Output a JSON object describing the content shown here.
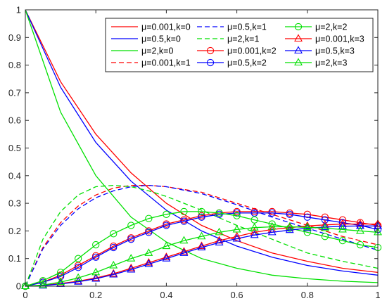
{
  "chart_data": {
    "type": "line",
    "xlim": [
      0,
      1
    ],
    "ylim": [
      0,
      1
    ],
    "x_ticks": [
      0,
      0.2,
      0.4,
      0.6,
      0.8,
      1
    ],
    "x_tick_labels": [
      "0",
      "0.2",
      "0.4",
      "0.6",
      "0.8",
      "1"
    ],
    "y_ticks": [
      0,
      0.1,
      0.2,
      0.3,
      0.4,
      0.5,
      0.6,
      0.7,
      0.8,
      0.9,
      1
    ],
    "y_tick_labels": [
      "0",
      "0.1",
      "0.2",
      "0.3",
      "0.4",
      "0.5",
      "0.6",
      "0.7",
      "0.8",
      "0.9",
      "1"
    ],
    "grid": false,
    "legend_position": "top-right",
    "legend_columns": 3,
    "colors": {
      "mu_0.001": "#ff0000",
      "mu_0.5": "#0000ff",
      "mu_2": "#00e000"
    },
    "series": [
      {
        "name": "μ=0.001,k=0",
        "color": "#ff0000",
        "style": "solid",
        "marker": "none",
        "x": [
          0,
          0.1,
          0.2,
          0.3,
          0.4,
          0.5,
          0.6,
          0.7,
          0.8,
          0.9,
          1.0
        ],
        "y": [
          1,
          0.74,
          0.55,
          0.41,
          0.3,
          0.22,
          0.165,
          0.12,
          0.09,
          0.065,
          0.05
        ]
      },
      {
        "name": "μ=0.5,k=0",
        "color": "#0000ff",
        "style": "solid",
        "marker": "none",
        "x": [
          0,
          0.1,
          0.2,
          0.3,
          0.4,
          0.5,
          0.6,
          0.7,
          0.8,
          0.9,
          1.0
        ],
        "y": [
          1,
          0.72,
          0.52,
          0.38,
          0.275,
          0.2,
          0.145,
          0.105,
          0.075,
          0.055,
          0.04
        ]
      },
      {
        "name": "μ=2,k=0",
        "color": "#00e000",
        "style": "solid",
        "marker": "none",
        "x": [
          0,
          0.1,
          0.2,
          0.3,
          0.4,
          0.5,
          0.6,
          0.7,
          0.8,
          0.9,
          1.0
        ],
        "y": [
          1,
          0.63,
          0.4,
          0.25,
          0.16,
          0.1,
          0.065,
          0.04,
          0.027,
          0.018,
          0.013
        ]
      },
      {
        "name": "μ=0.001,k=1",
        "color": "#ff0000",
        "style": "dashed",
        "marker": "none",
        "x": [
          0,
          0.05,
          0.1,
          0.15,
          0.2,
          0.25,
          0.3,
          0.35,
          0.4,
          0.5,
          0.6,
          0.7,
          0.8,
          0.9,
          1.0
        ],
        "y": [
          0,
          0.14,
          0.23,
          0.29,
          0.33,
          0.355,
          0.365,
          0.365,
          0.36,
          0.34,
          0.3,
          0.26,
          0.22,
          0.18,
          0.15
        ]
      },
      {
        "name": "μ=0.5,k=1",
        "color": "#0000ff",
        "style": "dashed",
        "marker": "none",
        "x": [
          0,
          0.05,
          0.1,
          0.15,
          0.2,
          0.25,
          0.3,
          0.35,
          0.4,
          0.5,
          0.6,
          0.7,
          0.8,
          0.9,
          1.0
        ],
        "y": [
          0,
          0.135,
          0.22,
          0.28,
          0.32,
          0.345,
          0.36,
          0.365,
          0.36,
          0.335,
          0.295,
          0.25,
          0.21,
          0.17,
          0.13
        ]
      },
      {
        "name": "μ=2,k=1",
        "color": "#00e000",
        "style": "dashed",
        "marker": "none",
        "x": [
          0,
          0.05,
          0.1,
          0.15,
          0.2,
          0.25,
          0.3,
          0.35,
          0.4,
          0.5,
          0.6,
          0.7,
          0.8,
          0.9,
          1.0
        ],
        "y": [
          0,
          0.17,
          0.27,
          0.33,
          0.36,
          0.365,
          0.36,
          0.345,
          0.325,
          0.275,
          0.22,
          0.17,
          0.12,
          0.09,
          0.065
        ]
      },
      {
        "name": "μ=0.001,k=2",
        "color": "#ff0000",
        "style": "solid",
        "marker": "circle",
        "x": [
          0,
          0.05,
          0.1,
          0.15,
          0.2,
          0.25,
          0.3,
          0.35,
          0.4,
          0.45,
          0.5,
          0.55,
          0.6,
          0.65,
          0.7,
          0.75,
          0.8,
          0.85,
          0.9,
          0.95,
          1.0
        ],
        "y": [
          0,
          0.015,
          0.04,
          0.075,
          0.11,
          0.145,
          0.175,
          0.2,
          0.225,
          0.24,
          0.255,
          0.265,
          0.27,
          0.27,
          0.27,
          0.265,
          0.26,
          0.25,
          0.24,
          0.23,
          0.22
        ]
      },
      {
        "name": "μ=0.5,k=2",
        "color": "#0000ff",
        "style": "solid",
        "marker": "circle",
        "x": [
          0,
          0.05,
          0.1,
          0.15,
          0.2,
          0.25,
          0.3,
          0.35,
          0.4,
          0.45,
          0.5,
          0.55,
          0.6,
          0.65,
          0.7,
          0.75,
          0.8,
          0.85,
          0.9,
          0.95,
          1.0
        ],
        "y": [
          0,
          0.014,
          0.035,
          0.068,
          0.105,
          0.14,
          0.17,
          0.195,
          0.22,
          0.235,
          0.25,
          0.26,
          0.265,
          0.265,
          0.265,
          0.26,
          0.25,
          0.24,
          0.23,
          0.22,
          0.205
        ]
      },
      {
        "name": "μ=2,k=2",
        "color": "#00e000",
        "style": "solid",
        "marker": "circle",
        "x": [
          0,
          0.05,
          0.1,
          0.15,
          0.2,
          0.25,
          0.3,
          0.35,
          0.4,
          0.45,
          0.5,
          0.55,
          0.6,
          0.65,
          0.7,
          0.75,
          0.8,
          0.85,
          0.9,
          0.95,
          1.0
        ],
        "y": [
          0,
          0.02,
          0.05,
          0.1,
          0.15,
          0.19,
          0.22,
          0.245,
          0.26,
          0.27,
          0.27,
          0.265,
          0.255,
          0.24,
          0.225,
          0.21,
          0.195,
          0.18,
          0.165,
          0.15,
          0.14
        ]
      },
      {
        "name": "μ=0.001,k=3",
        "color": "#ff0000",
        "style": "solid",
        "marker": "triangle",
        "x": [
          0,
          0.05,
          0.1,
          0.15,
          0.2,
          0.25,
          0.3,
          0.35,
          0.4,
          0.45,
          0.5,
          0.55,
          0.6,
          0.65,
          0.7,
          0.75,
          0.8,
          0.85,
          0.9,
          0.95,
          1.0
        ],
        "y": [
          0,
          0.003,
          0.01,
          0.018,
          0.03,
          0.045,
          0.065,
          0.085,
          0.105,
          0.125,
          0.145,
          0.165,
          0.18,
          0.195,
          0.205,
          0.212,
          0.218,
          0.222,
          0.225,
          0.225,
          0.225
        ]
      },
      {
        "name": "μ=0.5,k=3",
        "color": "#0000ff",
        "style": "solid",
        "marker": "triangle",
        "x": [
          0,
          0.05,
          0.1,
          0.15,
          0.2,
          0.25,
          0.3,
          0.35,
          0.4,
          0.45,
          0.5,
          0.55,
          0.6,
          0.65,
          0.7,
          0.75,
          0.8,
          0.85,
          0.9,
          0.95,
          1.0
        ],
        "y": [
          0,
          0.002,
          0.008,
          0.016,
          0.027,
          0.042,
          0.06,
          0.08,
          0.1,
          0.12,
          0.14,
          0.158,
          0.172,
          0.185,
          0.195,
          0.203,
          0.21,
          0.214,
          0.217,
          0.218,
          0.218
        ]
      },
      {
        "name": "μ=2,k=3",
        "color": "#00e000",
        "style": "solid",
        "marker": "triangle",
        "x": [
          0,
          0.05,
          0.1,
          0.15,
          0.2,
          0.25,
          0.3,
          0.35,
          0.4,
          0.45,
          0.5,
          0.55,
          0.6,
          0.65,
          0.7,
          0.75,
          0.8,
          0.85,
          0.9,
          0.95,
          1.0
        ],
        "y": [
          0,
          0.004,
          0.015,
          0.03,
          0.05,
          0.075,
          0.1,
          0.12,
          0.145,
          0.165,
          0.18,
          0.195,
          0.205,
          0.212,
          0.215,
          0.215,
          0.213,
          0.21,
          0.205,
          0.2,
          0.195
        ]
      }
    ],
    "legend_order": [
      0,
      1,
      2,
      3,
      4,
      5,
      6,
      7,
      8,
      9,
      10,
      11
    ]
  }
}
